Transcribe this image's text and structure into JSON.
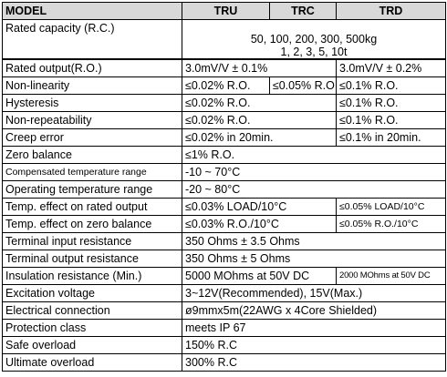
{
  "headers": {
    "model": "MODEL",
    "tru": "TRU",
    "trc": "TRC",
    "trd": "TRD"
  },
  "rated_capacity": {
    "label": "Rated capacity (R.C.)",
    "line1": "50, 100, 200, 300, 500kg",
    "line2": "1, 2, 3, 5, 10t"
  },
  "rated_output": {
    "label": "Rated output(R.O.)",
    "tru_trc": "3.0mV/V ± 0.1%",
    "trd": "3.0mV/V ± 0.2%"
  },
  "non_linearity": {
    "label": "Non-linearity",
    "tru": "≤0.02% R.O.",
    "trc": "≤0.05% R.O.",
    "trd": "≤0.1% R.O."
  },
  "hysteresis": {
    "label": "Hysteresis",
    "tru_trc": "≤0.02% R.O.",
    "trd": "≤0.1% R.O."
  },
  "non_repeatability": {
    "label": "Non-repeatability",
    "tru_trc": "≤0.02% R.O.",
    "trd": "≤0.1% R.O."
  },
  "creep_error": {
    "label": "Creep error",
    "tru_trc": "≤0.02% in 20min.",
    "trd": "≤0.1% in 20min."
  },
  "zero_balance": {
    "label": "Zero balance",
    "value": "≤1% R.O."
  },
  "comp_temp_range": {
    "label": "Compensated temperature range",
    "value": "-10 ~ 70°C"
  },
  "op_temp_range": {
    "label": "Operating temperature range",
    "value": "-20 ~ 80°C"
  },
  "temp_effect_output": {
    "label": "Temp. effect on rated output",
    "tru_trc": "≤0.03% LOAD/10°C",
    "trd": "≤0.05% LOAD/10°C"
  },
  "temp_effect_zero": {
    "label": "Temp. effect on zero balance",
    "tru_trc": "≤0.03% R.O./10°C",
    "trd": "≤0.05% R.O./10°C"
  },
  "input_resistance": {
    "label": "Terminal input resistance",
    "value": "350 Ohms ± 3.5 Ohms"
  },
  "output_resistance": {
    "label": "Terminal output resistance",
    "value": "350 Ohms ± 5 Ohms"
  },
  "insulation_resistance": {
    "label": "Insulation resistance (Min.)",
    "tru_trc": "5000 MOhms at 50V DC",
    "trd": "2000 MOhms at 50V DC"
  },
  "excitation_voltage": {
    "label": "Excitation voltage",
    "value": "3~12V(Recommended), 15V(Max.)"
  },
  "electrical_connection": {
    "label": "Electrical connection",
    "value": "ø9mmx5m(22AWG x 4Core Shielded)"
  },
  "protection_class": {
    "label": "Protection class",
    "value": "meets IP 67"
  },
  "safe_overload": {
    "label": "Safe overload",
    "value": "150% R.C"
  },
  "ultimate_overload": {
    "label": "Ultimate overload",
    "value": "300% R.C"
  }
}
